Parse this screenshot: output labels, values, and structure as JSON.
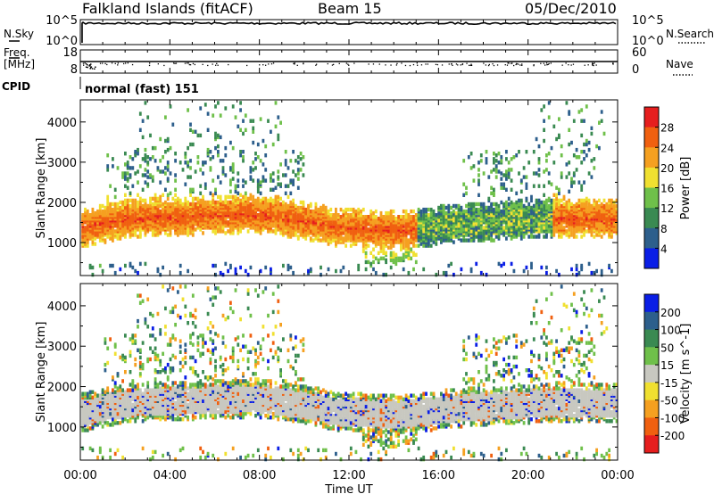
{
  "header": {
    "station": "Falkland Islands (fitACF)",
    "beam": "Beam 15",
    "date": "05/Dec/2010"
  },
  "side_labels": {
    "nsky": "N.Sky",
    "nsearch": "N.Search",
    "freq_line1": "Freq.",
    "freq_line2": "[MHz]",
    "nave": "Nave",
    "cpid": "CPID",
    "cpid_value": "normal (fast) 151"
  },
  "noise_panel": {
    "left_ticks": [
      "10^5",
      "10^0"
    ],
    "right_ticks": [
      "10^5",
      "10^0"
    ]
  },
  "freq_panel": {
    "left_ticks": [
      "18",
      "8"
    ],
    "right_ticks": [
      "60",
      "0"
    ]
  },
  "colors": {
    "power": [
      "#0a1ee6",
      "#2d5f8c",
      "#3a8a52",
      "#6fc04a",
      "#f0e030",
      "#f5a020",
      "#f06010",
      "#e61e1e"
    ],
    "velocity": [
      "#e61e1e",
      "#f06010",
      "#f5a020",
      "#f0e030",
      "#c8c8c0",
      "#6fc04a",
      "#3a8a52",
      "#2d5f8c",
      "#0a1ee6"
    ],
    "ground_scatter": "#c8c8c0"
  },
  "chart_data": [
    {
      "type": "heatmap",
      "name": "power",
      "ylabel": "Slant Range [km]",
      "y_ticks": [
        1000,
        2000,
        3000,
        4000
      ],
      "ylim": [
        180,
        4550
      ],
      "colorbar_label": "Power [dB]",
      "colorbar_ticks": [
        "4",
        "8",
        "12",
        "16",
        "20",
        "24",
        "28"
      ],
      "colorbar_range": [
        0,
        32
      ]
    },
    {
      "type": "heatmap",
      "name": "velocity",
      "ylabel": "Slant Range [km]",
      "y_ticks": [
        1000,
        2000,
        3000,
        4000
      ],
      "ylim": [
        180,
        4550
      ],
      "colorbar_label": "Velocity [m s^-1]",
      "colorbar_ticks": [
        "200",
        "100",
        "50",
        "15",
        "-15",
        "-50",
        "-100",
        "-200"
      ]
    }
  ],
  "x_axis": {
    "title": "Time UT",
    "ticks": [
      "00:00",
      "04:00",
      "08:00",
      "12:00",
      "16:00",
      "20:00",
      "00:00"
    ]
  }
}
